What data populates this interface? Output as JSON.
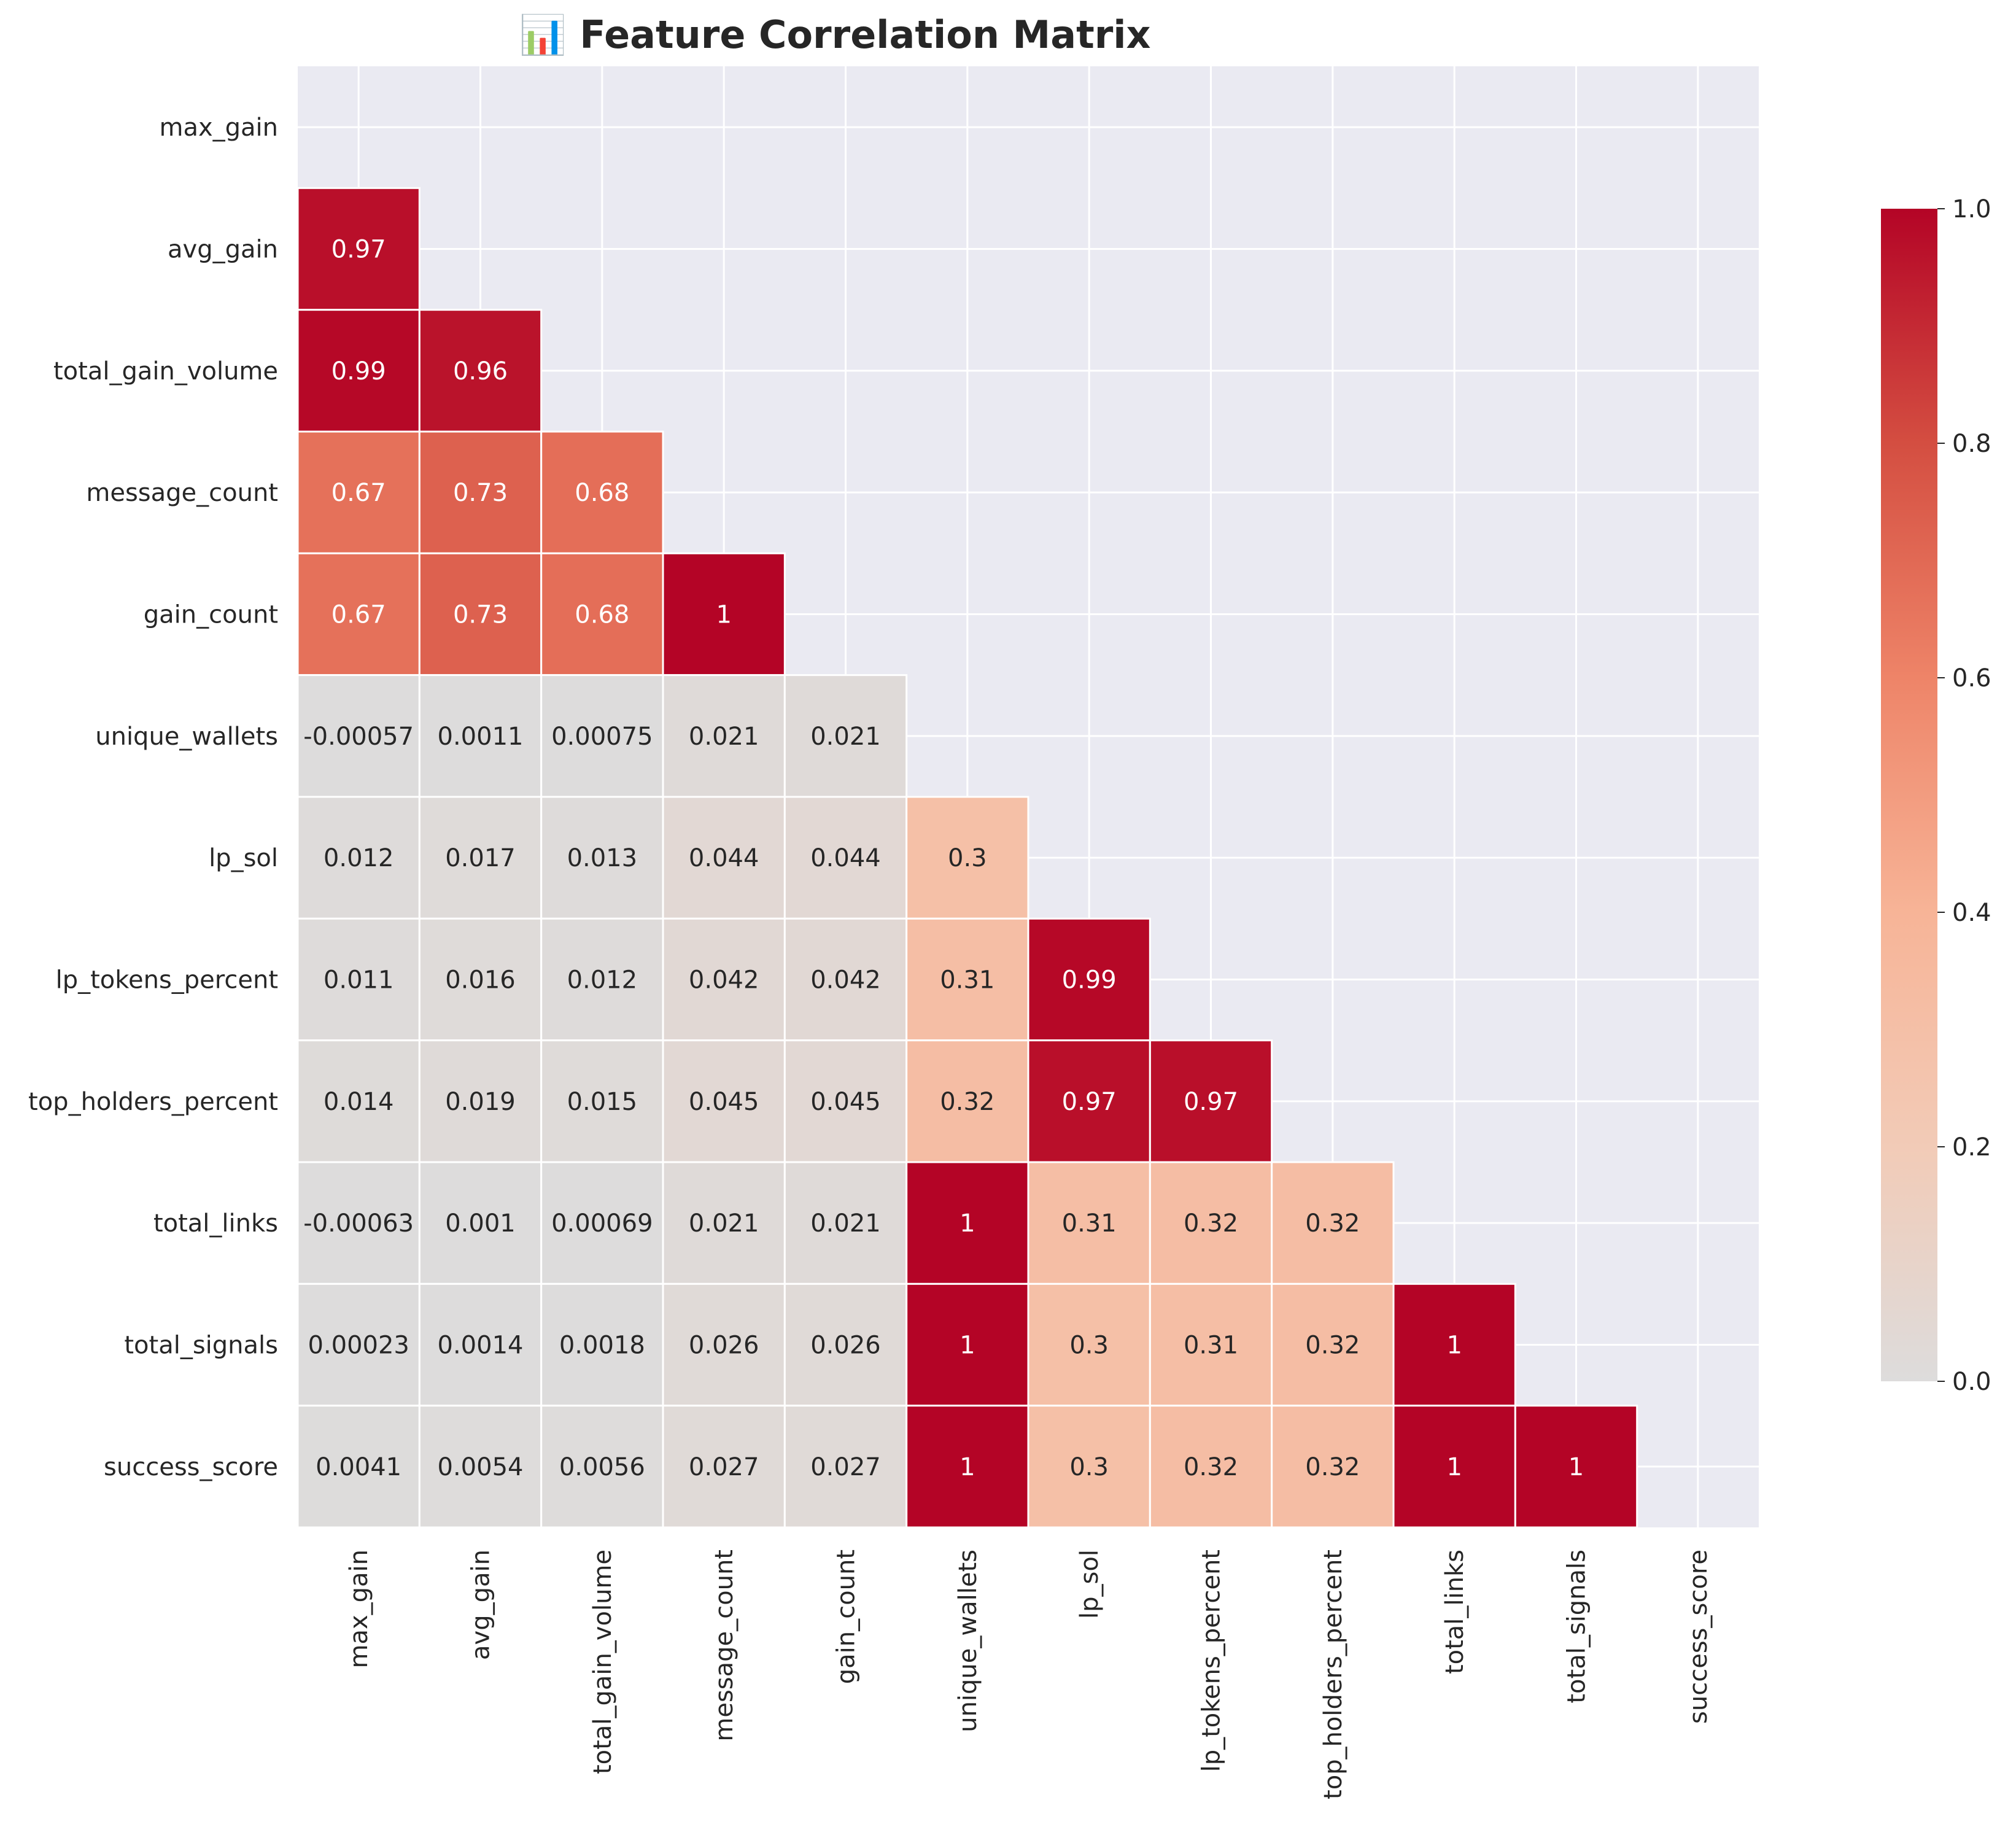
{
  "chart_data": {
    "type": "heatmap",
    "title": "📊 Feature Correlation Matrix",
    "title_icon": "chart-icon",
    "xlabel": "",
    "ylabel": "",
    "labels": [
      "max_gain",
      "avg_gain",
      "total_gain_volume",
      "message_count",
      "gain_count",
      "unique_wallets",
      "lp_sol",
      "lp_tokens_percent",
      "top_holders_percent",
      "total_links",
      "total_signals",
      "success_score"
    ],
    "mask": "upper triangle including diagonal",
    "cells": [
      [
        null,
        null,
        null,
        null,
        null,
        null,
        null,
        null,
        null,
        null,
        null,
        null
      ],
      [
        0.97,
        null,
        null,
        null,
        null,
        null,
        null,
        null,
        null,
        null,
        null,
        null
      ],
      [
        0.99,
        0.96,
        null,
        null,
        null,
        null,
        null,
        null,
        null,
        null,
        null,
        null
      ],
      [
        0.67,
        0.73,
        0.68,
        null,
        null,
        null,
        null,
        null,
        null,
        null,
        null,
        null
      ],
      [
        0.67,
        0.73,
        0.68,
        1,
        null,
        null,
        null,
        null,
        null,
        null,
        null,
        null
      ],
      [
        -0.00057,
        0.0011,
        0.00075,
        0.021,
        0.021,
        null,
        null,
        null,
        null,
        null,
        null,
        null
      ],
      [
        0.012,
        0.017,
        0.013,
        0.044,
        0.044,
        0.3,
        null,
        null,
        null,
        null,
        null,
        null
      ],
      [
        0.011,
        0.016,
        0.012,
        0.042,
        0.042,
        0.31,
        0.99,
        null,
        null,
        null,
        null,
        null
      ],
      [
        0.014,
        0.019,
        0.015,
        0.045,
        0.045,
        0.32,
        0.97,
        0.97,
        null,
        null,
        null,
        null
      ],
      [
        -0.00063,
        0.001,
        0.00069,
        0.021,
        0.021,
        1,
        0.31,
        0.32,
        0.32,
        null,
        null,
        null
      ],
      [
        0.00023,
        0.0014,
        0.0018,
        0.026,
        0.026,
        1,
        0.3,
        0.31,
        0.32,
        1,
        null,
        null
      ],
      [
        0.0041,
        0.0054,
        0.0056,
        0.027,
        0.027,
        1,
        0.3,
        0.32,
        0.32,
        1,
        1,
        null
      ]
    ],
    "annotations": [
      [
        null,
        null,
        null,
        null,
        null,
        null,
        null,
        null,
        null,
        null,
        null,
        null
      ],
      [
        "0.97",
        null,
        null,
        null,
        null,
        null,
        null,
        null,
        null,
        null,
        null,
        null
      ],
      [
        "0.99",
        "0.96",
        null,
        null,
        null,
        null,
        null,
        null,
        null,
        null,
        null,
        null
      ],
      [
        "0.67",
        "0.73",
        "0.68",
        null,
        null,
        null,
        null,
        null,
        null,
        null,
        null,
        null
      ],
      [
        "0.67",
        "0.73",
        "0.68",
        "1",
        null,
        null,
        null,
        null,
        null,
        null,
        null,
        null
      ],
      [
        "-0.00057",
        "0.0011",
        "0.00075",
        "0.021",
        "0.021",
        null,
        null,
        null,
        null,
        null,
        null,
        null
      ],
      [
        "0.012",
        "0.017",
        "0.013",
        "0.044",
        "0.044",
        "0.3",
        null,
        null,
        null,
        null,
        null,
        null
      ],
      [
        "0.011",
        "0.016",
        "0.012",
        "0.042",
        "0.042",
        "0.31",
        "0.99",
        null,
        null,
        null,
        null,
        null
      ],
      [
        "0.014",
        "0.019",
        "0.015",
        "0.045",
        "0.045",
        "0.32",
        "0.97",
        "0.97",
        null,
        null,
        null,
        null
      ],
      [
        "-0.00063",
        "0.001",
        "0.00069",
        "0.021",
        "0.021",
        "1",
        "0.31",
        "0.32",
        "0.32",
        null,
        null,
        null
      ],
      [
        "0.00023",
        "0.0014",
        "0.0018",
        "0.026",
        "0.026",
        "1",
        "0.3",
        "0.31",
        "0.32",
        "1",
        null,
        null
      ],
      [
        "0.0041",
        "0.0054",
        "0.0056",
        "0.027",
        "0.027",
        "1",
        "0.3",
        "0.32",
        "0.32",
        "1",
        "1",
        null
      ]
    ],
    "colorbar": {
      "range": [
        0.0,
        1.0
      ],
      "ticks": [
        "0.0",
        "0.2",
        "0.4",
        "0.6",
        "0.8",
        "1.0"
      ],
      "colormap": "coolwarm (centered at 0)",
      "stops": [
        {
          "value": 0.0,
          "color": "#dddcdc"
        },
        {
          "value": 0.2,
          "color": "#f2cbb7"
        },
        {
          "value": 0.4,
          "color": "#f7b497"
        },
        {
          "value": 0.6,
          "color": "#ee8468"
        },
        {
          "value": 0.8,
          "color": "#d44e41"
        },
        {
          "value": 1.0,
          "color": "#b40426"
        }
      ]
    },
    "grid": true,
    "background_color": "#eaeaf2",
    "grid_color": "#ffffff"
  }
}
